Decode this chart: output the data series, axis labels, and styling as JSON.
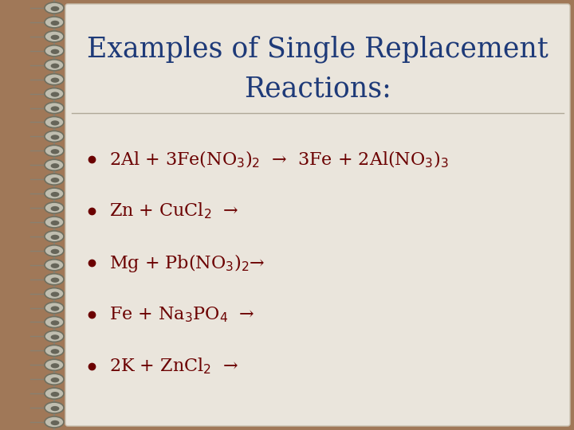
{
  "title_line1": "Examples of Single Replacement",
  "title_line2": "Reactions:",
  "title_color": "#1e3a78",
  "background_outer": "#a07858",
  "background_inner": "#eae5dc",
  "text_color": "#6b0000",
  "bullet_items": [
    "2Al + 3Fe(NO$_3$)$_2$  →  3Fe + 2Al(NO$_3$)$_3$",
    "Zn + CuCl$_2$  →",
    "Mg + Pb(NO$_3$)$_2$→",
    "Fe + Na$_3$PO$_4$  →",
    "2K + ZnCl$_2$  →"
  ],
  "spiral_color_edge": "#707060",
  "spiral_color_fill": "#c0beb0",
  "spiral_color_dark": "#404035",
  "divider_color": "#b0a898",
  "figsize": [
    7.2,
    5.4
  ],
  "dpi": 100,
  "title_fontsize": 25,
  "bullet_fontsize": 16
}
